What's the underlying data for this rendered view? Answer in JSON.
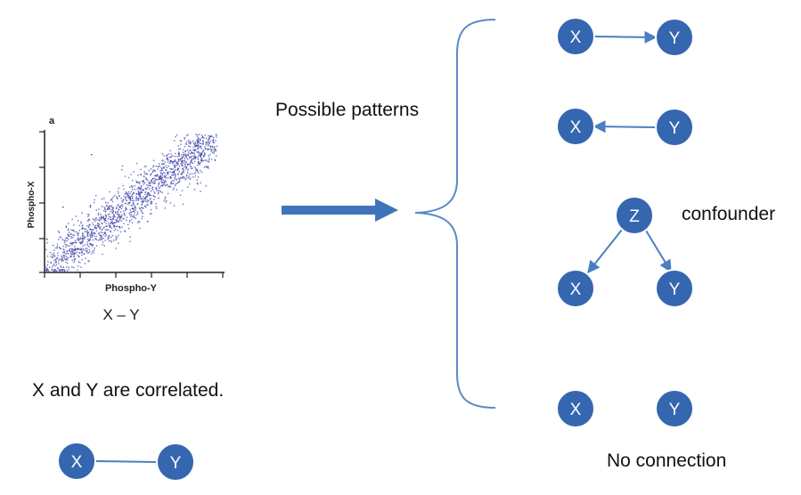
{
  "scatter": {
    "panel_letter": "a",
    "ylabel": "Phospho-X",
    "xlabel": "Phospho-Y",
    "relation_text": "X – Y"
  },
  "labels": {
    "possible_patterns": "Possible patterns",
    "correlated": "X and Y are correlated.",
    "confounder": "confounder",
    "no_connection": "No connection"
  },
  "nodes": {
    "x": "X",
    "y": "Y",
    "z": "Z"
  },
  "colors": {
    "node_fill": "#3566b0",
    "node_stroke": "#ffffff",
    "edge": "#4a7fc1",
    "arrow": "#3f74b8",
    "brace": "#5b8ac6",
    "scatter_point": "#3a3fa8"
  },
  "patterns": [
    {
      "name": "x-causes-y",
      "from": "X",
      "to": "Y"
    },
    {
      "name": "y-causes-x",
      "from": "Y",
      "to": "X"
    },
    {
      "name": "confounder",
      "from": "Z",
      "to": [
        "X",
        "Y"
      ]
    },
    {
      "name": "no-connection",
      "from": null,
      "to": null
    }
  ]
}
